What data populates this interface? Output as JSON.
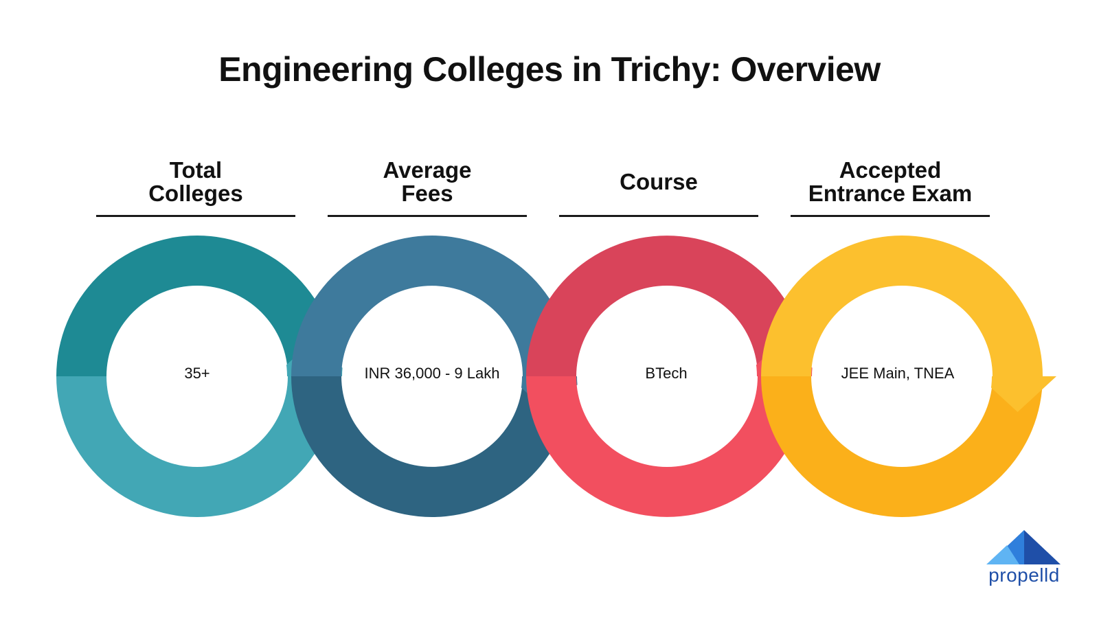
{
  "title": "Engineering Colleges in Trichy: Overview",
  "items": [
    {
      "heading_lines": [
        "Total",
        "Colleges"
      ],
      "value": "35+",
      "color_top": "#1e8a94",
      "color_bottom": "#42a7b5"
    },
    {
      "heading_lines": [
        "Average",
        "Fees"
      ],
      "value": "INR 36,000 - 9 Lakh",
      "color_top": "#3e7a9c",
      "color_bottom": "#2e6481"
    },
    {
      "heading_lines": [
        "Course"
      ],
      "value": "BTech",
      "color_top": "#d9445a",
      "color_bottom": "#f24f5f"
    },
    {
      "heading_lines": [
        "Accepted",
        "Entrance Exam"
      ],
      "value": "JEE Main, TNEA",
      "color_top": "#fcc02e",
      "color_bottom": "#fbb01a"
    }
  ],
  "logo": {
    "text": "propelld",
    "icon": "mountain-logo-icon",
    "colors": [
      "#1f4fa8",
      "#2f7fdc",
      "#5fb4f3"
    ]
  }
}
